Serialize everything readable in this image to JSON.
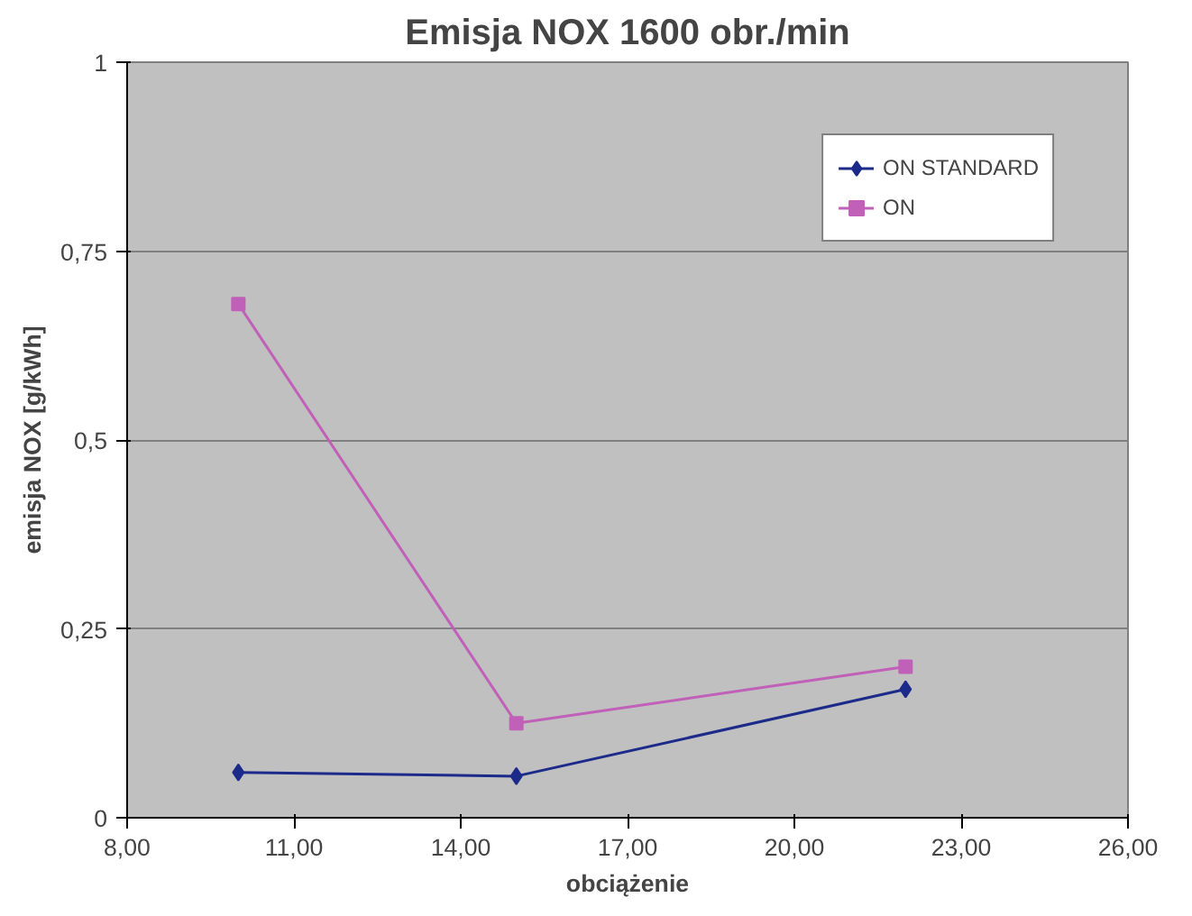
{
  "chart_data": {
    "type": "line",
    "title": "Emisja NOX 1600 obr./min",
    "xlabel": "obciążenie",
    "ylabel": "emisja NOX [g/kWh]",
    "x": [
      10,
      15,
      22
    ],
    "series": [
      {
        "name": "ON STANDARD",
        "color": "#1c2a8a",
        "values": [
          0.06,
          0.055,
          0.17
        ],
        "marker": "diamond"
      },
      {
        "name": "ON",
        "color": "#c060b8",
        "values": [
          0.68,
          0.125,
          0.2
        ],
        "marker": "square"
      }
    ],
    "xlim": [
      8,
      26
    ],
    "xticks": [
      {
        "value": 8,
        "label": "8,00"
      },
      {
        "value": 11,
        "label": "11,00"
      },
      {
        "value": 14,
        "label": "14,00"
      },
      {
        "value": 17,
        "label": "17,00"
      },
      {
        "value": 20,
        "label": "20,00"
      },
      {
        "value": 23,
        "label": "23,00"
      },
      {
        "value": 26,
        "label": "26,00"
      }
    ],
    "ylim": [
      0,
      1
    ],
    "yticks": [
      0,
      {
        "value": 0.25,
        "label": "0,25"
      },
      {
        "value": 0.5,
        "label": "0,5"
      },
      {
        "value": 0.75,
        "label": "0,75"
      },
      1
    ],
    "grid": "y",
    "legend": "top right"
  }
}
